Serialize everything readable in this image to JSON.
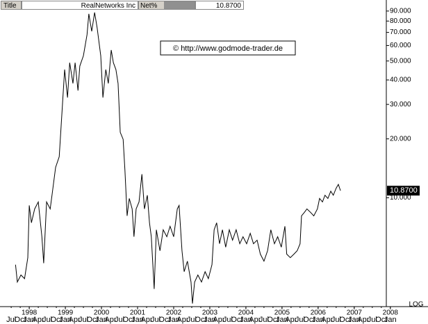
{
  "header": {
    "label": "Title",
    "name": "RealNetworks Inc",
    "field": "Net%",
    "last": "10.8700"
  },
  "chart_data": {
    "type": "line",
    "annotation": "© http://www.godmode-trader.de",
    "scale_label": "LOG",
    "log_y": true,
    "color": "#000000",
    "last_label": "10.8700",
    "x": [
      1997.62,
      1997.67,
      1997.77,
      1997.87,
      1997.96,
      1998.0,
      1998.06,
      1998.15,
      1998.25,
      1998.35,
      1998.4,
      1998.48,
      1998.58,
      1998.63,
      1998.73,
      1998.83,
      1998.92,
      1998.98,
      1999.06,
      1999.12,
      1999.21,
      1999.27,
      1999.35,
      1999.4,
      1999.5,
      1999.6,
      1999.65,
      1999.73,
      1999.81,
      1999.88,
      1999.98,
      2000.04,
      2000.12,
      2000.19,
      2000.27,
      2000.33,
      2000.4,
      2000.46,
      2000.52,
      2000.6,
      2000.65,
      2000.71,
      2000.77,
      2000.85,
      2000.9,
      2000.96,
      2001.04,
      2001.12,
      2001.19,
      2001.27,
      2001.33,
      2001.38,
      2001.46,
      2001.52,
      2001.62,
      2001.71,
      2001.81,
      2001.9,
      2002.0,
      2002.1,
      2002.15,
      2002.23,
      2002.29,
      2002.38,
      2002.48,
      2002.52,
      2002.58,
      2002.67,
      2002.77,
      2002.87,
      2002.96,
      2003.06,
      2003.12,
      2003.19,
      2003.27,
      2003.35,
      2003.44,
      2003.54,
      2003.63,
      2003.73,
      2003.83,
      2003.92,
      2004.02,
      2004.12,
      2004.21,
      2004.31,
      2004.4,
      2004.5,
      2004.6,
      2004.69,
      2004.79,
      2004.88,
      2004.98,
      2005.08,
      2005.13,
      2005.23,
      2005.33,
      2005.42,
      2005.5,
      2005.54,
      2005.62,
      2005.69,
      2005.79,
      2005.88,
      2005.98,
      2006.04,
      2006.12,
      2006.19,
      2006.27,
      2006.35,
      2006.42,
      2006.5,
      2006.56,
      2006.62
    ],
    "values": [
      4.55,
      3.71,
      4.03,
      3.86,
      4.94,
      9.14,
      7.45,
      8.77,
      9.52,
      6.32,
      4.63,
      9.52,
      8.77,
      10.3,
      14.3,
      16.2,
      30.0,
      45.2,
      32.5,
      49.0,
      38.4,
      49.0,
      35.3,
      47.1,
      53.2,
      68.1,
      87.1,
      70.9,
      88.5,
      73.9,
      53.2,
      32.5,
      45.2,
      38.4,
      56.9,
      49.0,
      45.2,
      38.4,
      21.6,
      19.9,
      13.8,
      8.08,
      9.92,
      8.77,
      6.32,
      8.77,
      9.52,
      13.2,
      8.77,
      10.3,
      7.45,
      6.32,
      3.42,
      6.86,
      5.36,
      6.86,
      6.32,
      7.15,
      6.32,
      8.77,
      9.14,
      5.36,
      4.19,
      4.74,
      3.71,
      2.88,
      3.71,
      4.03,
      3.71,
      4.19,
      3.86,
      4.55,
      6.86,
      7.45,
      5.82,
      6.86,
      5.59,
      6.86,
      6.07,
      6.86,
      5.82,
      6.32,
      5.82,
      6.58,
      5.82,
      6.07,
      5.15,
      4.74,
      5.36,
      6.86,
      5.82,
      6.32,
      5.59,
      7.15,
      5.15,
      4.94,
      5.15,
      5.36,
      5.82,
      8.08,
      8.42,
      8.77,
      8.42,
      8.08,
      8.77,
      9.92,
      9.52,
      10.3,
      9.92,
      10.8,
      10.3,
      11.2,
      11.7,
      10.87
    ],
    "xlim": [
      1997.19,
      2008.1
    ],
    "xticks": [
      1998,
      1999,
      2000,
      2001,
      2002,
      2003,
      2004,
      2005,
      2006,
      2007,
      2008
    ],
    "month_ticks": [
      {
        "value": 1997.5,
        "label": "Jul"
      },
      {
        "value": 1997.75,
        "label": "Oct"
      },
      {
        "value": 1998.0,
        "label": "Jan"
      },
      {
        "value": 1998.25,
        "label": "Apr"
      },
      {
        "value": 1998.5,
        "label": "Jul"
      },
      {
        "value": 1998.75,
        "label": "Oct"
      },
      {
        "value": 1999.0,
        "label": "Jan"
      },
      {
        "value": 1999.25,
        "label": "Apr"
      },
      {
        "value": 1999.5,
        "label": "Jul"
      },
      {
        "value": 1999.75,
        "label": "Oct"
      },
      {
        "value": 2000.0,
        "label": "Jan"
      },
      {
        "value": 2000.25,
        "label": "Apr"
      },
      {
        "value": 2000.5,
        "label": "Jul"
      },
      {
        "value": 2000.75,
        "label": "Oct"
      },
      {
        "value": 2001.0,
        "label": "Jan"
      },
      {
        "value": 2001.25,
        "label": "Apr"
      },
      {
        "value": 2001.5,
        "label": "Jul"
      },
      {
        "value": 2001.75,
        "label": "Oct"
      },
      {
        "value": 2002.0,
        "label": "Jan"
      },
      {
        "value": 2002.25,
        "label": "Apr"
      },
      {
        "value": 2002.5,
        "label": "Jul"
      },
      {
        "value": 2002.75,
        "label": "Oct"
      },
      {
        "value": 2003.0,
        "label": "Jan"
      },
      {
        "value": 2003.25,
        "label": "Apr"
      },
      {
        "value": 2003.5,
        "label": "Jul"
      },
      {
        "value": 2003.75,
        "label": "Oct"
      },
      {
        "value": 2004.0,
        "label": "Jan"
      },
      {
        "value": 2004.25,
        "label": "Apr"
      },
      {
        "value": 2004.5,
        "label": "Jul"
      },
      {
        "value": 2004.75,
        "label": "Oct"
      },
      {
        "value": 2005.0,
        "label": "Jan"
      },
      {
        "value": 2005.25,
        "label": "Apr"
      },
      {
        "value": 2005.5,
        "label": "Jul"
      },
      {
        "value": 2005.75,
        "label": "Oct"
      },
      {
        "value": 2006.0,
        "label": "Jan"
      },
      {
        "value": 2006.25,
        "label": "Apr"
      },
      {
        "value": 2006.5,
        "label": "Jul"
      },
      {
        "value": 2006.75,
        "label": "Oct"
      },
      {
        "value": 2007.0,
        "label": "Jan"
      },
      {
        "value": 2007.25,
        "label": "Apr"
      },
      {
        "value": 2007.5,
        "label": "Jul"
      },
      {
        "value": 2007.75,
        "label": "Oct"
      },
      {
        "value": 2008.0,
        "label": "Jan"
      }
    ],
    "ylim": [
      2.8,
      96
    ],
    "yticks": [
      {
        "value": 10,
        "label": "10.000"
      },
      {
        "value": 20,
        "label": "20.000"
      },
      {
        "value": 30,
        "label": "30.000"
      },
      {
        "value": 40,
        "label": "40.000"
      },
      {
        "value": 50,
        "label": "50.000"
      },
      {
        "value": 60,
        "label": "60.000"
      },
      {
        "value": 70,
        "label": "70.000"
      },
      {
        "value": 80,
        "label": "80.000"
      },
      {
        "value": 90,
        "label": "90.000"
      }
    ]
  }
}
